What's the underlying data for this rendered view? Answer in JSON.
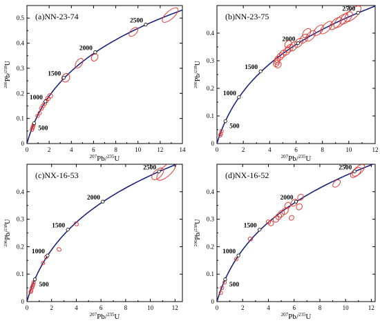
{
  "chart_data": [
    {
      "type": "scatter",
      "panel_label": "(a)NN-23-74",
      "xlabel_207": "207",
      "xlabel_mid": "Pb/",
      "xlabel_235": "235",
      "xlabel_end": "U",
      "ylabel_206": "206",
      "ylabel_mid": "Pb/",
      "ylabel_238": "238",
      "ylabel_end": "U",
      "xlim": [
        0,
        14
      ],
      "ylim": [
        0,
        0.55
      ],
      "xticks": [
        0,
        2,
        4,
        6,
        8,
        10,
        12,
        14
      ],
      "yticks": [
        0,
        0.1,
        0.2,
        0.3,
        0.4,
        0.5
      ],
      "concordia_labels": [
        {
          "age": "500",
          "x": 0.64,
          "y": 0.081
        },
        {
          "age": "1000",
          "x": 1.67,
          "y": 0.168
        },
        {
          "age": "1500",
          "x": 3.31,
          "y": 0.262
        },
        {
          "age": "2000",
          "x": 6.15,
          "y": 0.364
        },
        {
          "age": "2500",
          "x": 10.7,
          "y": 0.474
        }
      ],
      "ellipses": [
        {
          "x": 12.9,
          "y": 0.512,
          "rx": 0.9,
          "ry": 0.016
        },
        {
          "x": 9.6,
          "y": 0.445,
          "rx": 0.5,
          "ry": 0.012
        },
        {
          "x": 6.1,
          "y": 0.343,
          "rx": 0.35,
          "ry": 0.012
        },
        {
          "x": 4.7,
          "y": 0.32,
          "rx": 0.5,
          "ry": 0.012
        },
        {
          "x": 3.5,
          "y": 0.262,
          "rx": 0.4,
          "ry": 0.015
        },
        {
          "x": 2.1,
          "y": 0.19,
          "rx": 0.2,
          "ry": 0.01
        },
        {
          "x": 1.9,
          "y": 0.18,
          "rx": 0.18,
          "ry": 0.009
        },
        {
          "x": 1.75,
          "y": 0.17,
          "rx": 0.16,
          "ry": 0.008
        },
        {
          "x": 1.6,
          "y": 0.16,
          "rx": 0.15,
          "ry": 0.008
        },
        {
          "x": 1.45,
          "y": 0.15,
          "rx": 0.15,
          "ry": 0.008
        },
        {
          "x": 1.3,
          "y": 0.14,
          "rx": 0.13,
          "ry": 0.008
        },
        {
          "x": 1.15,
          "y": 0.122,
          "rx": 0.12,
          "ry": 0.007
        },
        {
          "x": 0.95,
          "y": 0.11,
          "rx": 0.1,
          "ry": 0.006
        },
        {
          "x": 0.6,
          "y": 0.075,
          "rx": 0.08,
          "ry": 0.005
        },
        {
          "x": 0.55,
          "y": 0.068,
          "rx": 0.08,
          "ry": 0.005
        },
        {
          "x": 0.5,
          "y": 0.062,
          "rx": 0.08,
          "ry": 0.005
        },
        {
          "x": 0.45,
          "y": 0.055,
          "rx": 0.08,
          "ry": 0.005
        }
      ]
    },
    {
      "type": "scatter",
      "panel_label": "(b)NN-23-75",
      "xlabel_207": "207",
      "xlabel_mid": "Pb/",
      "xlabel_235": "235",
      "xlabel_end": "U",
      "ylabel_206": "206",
      "ylabel_mid": "Pb/",
      "ylabel_238": "238",
      "ylabel_end": "U",
      "xlim": [
        0,
        12
      ],
      "ylim": [
        0,
        0.5
      ],
      "xticks": [
        0,
        2,
        4,
        6,
        8,
        10,
        12
      ],
      "yticks": [
        0,
        0.1,
        0.2,
        0.3,
        0.4
      ],
      "concordia_labels": [
        {
          "age": "500",
          "x": 0.64,
          "y": 0.081
        },
        {
          "age": "1000",
          "x": 1.67,
          "y": 0.168
        },
        {
          "age": "1500",
          "x": 3.31,
          "y": 0.262
        },
        {
          "age": "2000",
          "x": 6.15,
          "y": 0.364
        },
        {
          "age": "2500",
          "x": 10.7,
          "y": 0.474
        }
      ],
      "ellipses": [
        {
          "x": 10.3,
          "y": 0.47,
          "rx": 0.8,
          "ry": 0.016
        },
        {
          "x": 9.8,
          "y": 0.455,
          "rx": 0.6,
          "ry": 0.014
        },
        {
          "x": 9.4,
          "y": 0.445,
          "rx": 0.7,
          "ry": 0.014
        },
        {
          "x": 9.0,
          "y": 0.435,
          "rx": 0.6,
          "ry": 0.013
        },
        {
          "x": 8.3,
          "y": 0.42,
          "rx": 0.6,
          "ry": 0.013
        },
        {
          "x": 7.7,
          "y": 0.41,
          "rx": 0.5,
          "ry": 0.012
        },
        {
          "x": 7.1,
          "y": 0.39,
          "rx": 0.5,
          "ry": 0.012
        },
        {
          "x": 6.6,
          "y": 0.38,
          "rx": 0.4,
          "ry": 0.012
        },
        {
          "x": 6.2,
          "y": 0.365,
          "rx": 0.4,
          "ry": 0.012
        },
        {
          "x": 5.8,
          "y": 0.352,
          "rx": 0.4,
          "ry": 0.012
        },
        {
          "x": 5.5,
          "y": 0.345,
          "rx": 0.35,
          "ry": 0.011
        },
        {
          "x": 5.3,
          "y": 0.335,
          "rx": 0.35,
          "ry": 0.011
        },
        {
          "x": 5.0,
          "y": 0.325,
          "rx": 0.3,
          "ry": 0.011
        },
        {
          "x": 4.8,
          "y": 0.315,
          "rx": 0.3,
          "ry": 0.011
        },
        {
          "x": 4.6,
          "y": 0.305,
          "rx": 0.25,
          "ry": 0.01
        },
        {
          "x": 4.55,
          "y": 0.298,
          "rx": 0.25,
          "ry": 0.01
        },
        {
          "x": 4.5,
          "y": 0.29,
          "rx": 0.25,
          "ry": 0.01
        },
        {
          "x": 4.65,
          "y": 0.285,
          "rx": 0.25,
          "ry": 0.01
        },
        {
          "x": 5.4,
          "y": 0.36,
          "rx": 0.3,
          "ry": 0.011
        },
        {
          "x": 6.8,
          "y": 0.4,
          "rx": 0.4,
          "ry": 0.012
        },
        {
          "x": 0.35,
          "y": 0.045,
          "rx": 0.08,
          "ry": 0.006
        },
        {
          "x": 0.3,
          "y": 0.035,
          "rx": 0.08,
          "ry": 0.006
        },
        {
          "x": 0.25,
          "y": 0.03,
          "rx": 0.08,
          "ry": 0.006
        }
      ]
    },
    {
      "type": "scatter",
      "panel_label": "(c)NX-16-53",
      "xlabel_207": "207",
      "xlabel_mid": "Pb/",
      "xlabel_235": "235",
      "xlabel_end": "U",
      "ylabel_206": "206",
      "ylabel_mid": "Pb/",
      "ylabel_238": "238",
      "ylabel_end": "U",
      "xlim": [
        0,
        12.6
      ],
      "ylim": [
        0,
        0.5
      ],
      "xticks": [
        0,
        2,
        4,
        6,
        8,
        10,
        12
      ],
      "yticks": [
        0,
        0.1,
        0.2,
        0.3,
        0.4
      ],
      "concordia_labels": [
        {
          "age": "500",
          "x": 0.64,
          "y": 0.081
        },
        {
          "age": "1000",
          "x": 1.67,
          "y": 0.168
        },
        {
          "age": "1500",
          "x": 3.31,
          "y": 0.262
        },
        {
          "age": "2000",
          "x": 6.15,
          "y": 0.364
        },
        {
          "age": "2500",
          "x": 10.7,
          "y": 0.474
        }
      ],
      "ellipses": [
        {
          "x": 11.3,
          "y": 0.475,
          "rx": 1.0,
          "ry": 0.018
        },
        {
          "x": 10.6,
          "y": 0.465,
          "rx": 0.6,
          "ry": 0.014
        },
        {
          "x": 4.0,
          "y": 0.283,
          "rx": 0.15,
          "ry": 0.008
        },
        {
          "x": 2.6,
          "y": 0.19,
          "rx": 0.12,
          "ry": 0.008
        },
        {
          "x": 1.55,
          "y": 0.162,
          "rx": 0.1,
          "ry": 0.006
        },
        {
          "x": 1.3,
          "y": 0.14,
          "rx": 0.09,
          "ry": 0.006
        },
        {
          "x": 0.55,
          "y": 0.07,
          "rx": 0.08,
          "ry": 0.005
        },
        {
          "x": 0.5,
          "y": 0.062,
          "rx": 0.08,
          "ry": 0.005
        },
        {
          "x": 0.45,
          "y": 0.055,
          "rx": 0.08,
          "ry": 0.005
        },
        {
          "x": 0.4,
          "y": 0.05,
          "rx": 0.07,
          "ry": 0.005
        },
        {
          "x": 0.35,
          "y": 0.04,
          "rx": 0.07,
          "ry": 0.005
        },
        {
          "x": 0.3,
          "y": 0.035,
          "rx": 0.07,
          "ry": 0.005
        }
      ]
    },
    {
      "type": "scatter",
      "panel_label": "(d)NX-16-52",
      "xlabel_207": "207",
      "xlabel_mid": "Pb/",
      "xlabel_235": "235",
      "xlabel_end": "U",
      "ylabel_206": "206",
      "ylabel_mid": "Pb/",
      "ylabel_238": "238",
      "ylabel_end": "U",
      "xlim": [
        0,
        12.3
      ],
      "ylim": [
        0,
        0.5
      ],
      "xticks": [
        0,
        2,
        4,
        6,
        8,
        10,
        12
      ],
      "yticks": [
        0,
        0.1,
        0.2,
        0.3,
        0.4
      ],
      "concordia_labels": [
        {
          "age": "500",
          "x": 0.64,
          "y": 0.081
        },
        {
          "age": "1000",
          "x": 1.67,
          "y": 0.168
        },
        {
          "age": "1500",
          "x": 3.31,
          "y": 0.262
        },
        {
          "age": "2000",
          "x": 6.15,
          "y": 0.364
        },
        {
          "age": "2500",
          "x": 10.7,
          "y": 0.474
        }
      ],
      "ellipses": [
        {
          "x": 11.0,
          "y": 0.478,
          "rx": 0.6,
          "ry": 0.013
        },
        {
          "x": 10.8,
          "y": 0.47,
          "rx": 0.5,
          "ry": 0.012
        },
        {
          "x": 9.3,
          "y": 0.43,
          "rx": 0.35,
          "ry": 0.01
        },
        {
          "x": 6.5,
          "y": 0.38,
          "rx": 0.25,
          "ry": 0.01
        },
        {
          "x": 6.4,
          "y": 0.345,
          "rx": 0.25,
          "ry": 0.01
        },
        {
          "x": 6.0,
          "y": 0.36,
          "rx": 0.3,
          "ry": 0.01
        },
        {
          "x": 5.5,
          "y": 0.35,
          "rx": 0.25,
          "ry": 0.01
        },
        {
          "x": 5.3,
          "y": 0.33,
          "rx": 0.3,
          "ry": 0.01
        },
        {
          "x": 5.0,
          "y": 0.32,
          "rx": 0.3,
          "ry": 0.01
        },
        {
          "x": 4.8,
          "y": 0.31,
          "rx": 0.25,
          "ry": 0.01
        },
        {
          "x": 4.6,
          "y": 0.3,
          "rx": 0.25,
          "ry": 0.01
        },
        {
          "x": 5.8,
          "y": 0.305,
          "rx": 0.2,
          "ry": 0.008
        },
        {
          "x": 4.2,
          "y": 0.285,
          "rx": 0.2,
          "ry": 0.009
        },
        {
          "x": 4.0,
          "y": 0.29,
          "rx": 0.15,
          "ry": 0.008
        },
        {
          "x": 2.6,
          "y": 0.228,
          "rx": 0.15,
          "ry": 0.008
        },
        {
          "x": 1.5,
          "y": 0.155,
          "rx": 0.1,
          "ry": 0.006
        },
        {
          "x": 0.6,
          "y": 0.07,
          "rx": 0.08,
          "ry": 0.005
        },
        {
          "x": 0.4,
          "y": 0.05,
          "rx": 0.07,
          "ry": 0.005
        },
        {
          "x": 0.3,
          "y": 0.032,
          "rx": 0.07,
          "ry": 0.005
        }
      ]
    }
  ]
}
